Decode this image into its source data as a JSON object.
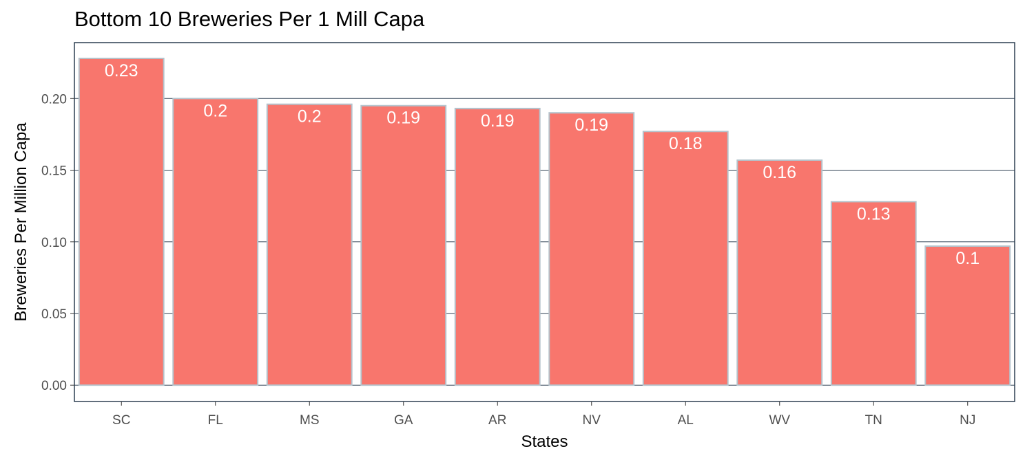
{
  "chart_data": {
    "type": "bar",
    "title": "Bottom 10 Breweries Per 1 Mill Capa",
    "xlabel": "States",
    "ylabel": "Breweries Per Million Capa",
    "categories": [
      "SC",
      "FL",
      "MS",
      "GA",
      "AR",
      "NV",
      "AL",
      "WV",
      "TN",
      "NJ"
    ],
    "values": [
      0.228,
      0.2,
      0.196,
      0.195,
      0.193,
      0.19,
      0.177,
      0.157,
      0.128,
      0.097
    ],
    "data_labels": [
      "0.23",
      "0.2",
      "0.2",
      "0.19",
      "0.19",
      "0.19",
      "0.18",
      "0.16",
      "0.13",
      "0.1"
    ],
    "y_ticks": [
      "0.00",
      "0.05",
      "0.10",
      "0.15",
      "0.20"
    ],
    "ylim": [
      -0.0114,
      0.239
    ],
    "grid": true,
    "legend": "none",
    "colors": {
      "bar_fill": "#f8766d",
      "bar_outline": "#b4c3cc",
      "grid": "#2c3e50",
      "panel_border": "#2c3e50",
      "tick_text": "#4d4d4d",
      "label_text": "#ffffff"
    }
  }
}
